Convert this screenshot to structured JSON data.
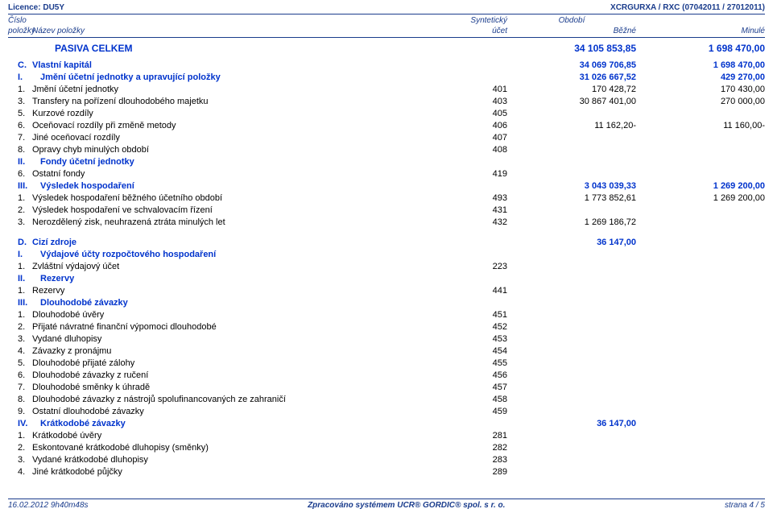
{
  "top": {
    "licence": "Licence: DU5Y",
    "report": "XCRGURXA / RXC (07042011 / 27012011)"
  },
  "head": {
    "cislo": "Číslo",
    "polozky": "položky",
    "nazev": "Název položky",
    "synt": "Syntetický",
    "ucet": "účet",
    "obdobi": "Období",
    "bezne": "Běžné",
    "minule": "Minulé"
  },
  "rows": [
    {
      "style": "blue big",
      "num": "",
      "name": "PASIVA CELKEM",
      "nameIndent": 28,
      "acct": "",
      "cur": "34 105 853,85",
      "prev": "1 698 470,00",
      "gapAfter": 6
    },
    {
      "style": "blue",
      "num": "C.",
      "name": "Vlastní kapitál",
      "acct": "",
      "cur": "34 069 706,85",
      "prev": "1 698 470,00"
    },
    {
      "style": "blue",
      "num": "I.",
      "name": "Jmění účetní jednotky a upravující položky",
      "nameIndent": 10,
      "acct": "",
      "cur": "31 026 667,52",
      "prev": "429 270,00"
    },
    {
      "num": "1.",
      "name": "Jmění účetní jednotky",
      "acct": "401",
      "cur": "170 428,72",
      "prev": "170 430,00"
    },
    {
      "num": "3.",
      "name": "Transfery na pořízení dlouhodobého majetku",
      "acct": "403",
      "cur": "30 867 401,00",
      "prev": "270 000,00"
    },
    {
      "num": "5.",
      "name": "Kurzové rozdíly",
      "acct": "405",
      "cur": "",
      "prev": ""
    },
    {
      "num": "6.",
      "name": "Oceňovací rozdíly při změně metody",
      "acct": "406",
      "cur": "11 162,20-",
      "prev": "11 160,00-"
    },
    {
      "num": "7.",
      "name": "Jiné oceňovací rozdíly",
      "acct": "407",
      "cur": "",
      "prev": ""
    },
    {
      "num": "8.",
      "name": "Opravy chyb minulých období",
      "acct": "408",
      "cur": "",
      "prev": ""
    },
    {
      "style": "blue",
      "num": "II.",
      "name": "Fondy účetní jednotky",
      "nameIndent": 10,
      "acct": "",
      "cur": "",
      "prev": ""
    },
    {
      "num": "6.",
      "name": "Ostatní fondy",
      "acct": "419",
      "cur": "",
      "prev": ""
    },
    {
      "style": "blue",
      "num": "III.",
      "name": "Výsledek hospodaření",
      "nameIndent": 10,
      "acct": "",
      "cur": "3 043 039,33",
      "prev": "1 269 200,00"
    },
    {
      "num": "1.",
      "name": "Výsledek hospodaření běžného účetního období",
      "acct": "493",
      "cur": "1 773 852,61",
      "prev": "1 269 200,00"
    },
    {
      "num": "2.",
      "name": "Výsledek hospodaření ve schvalovacím řízení",
      "acct": "431",
      "cur": "",
      "prev": ""
    },
    {
      "num": "3.",
      "name": "Nerozdělený zisk, neuhrazená ztráta minulých let",
      "acct": "432",
      "cur": "1 269 186,72",
      "prev": "",
      "gapAfter": 10
    },
    {
      "style": "blue",
      "num": "D.",
      "name": "Cizí zdroje",
      "acct": "",
      "cur": "36 147,00",
      "prev": ""
    },
    {
      "style": "blue",
      "num": "I.",
      "name": "Výdajové účty rozpočtového hospodaření",
      "nameIndent": 10,
      "acct": "",
      "cur": "",
      "prev": ""
    },
    {
      "num": "1.",
      "name": "Zvláštní výdajový účet",
      "acct": "223",
      "cur": "",
      "prev": ""
    },
    {
      "style": "blue",
      "num": "II.",
      "name": "Rezervy",
      "nameIndent": 10,
      "acct": "",
      "cur": "",
      "prev": ""
    },
    {
      "num": "1.",
      "name": "Rezervy",
      "acct": "441",
      "cur": "",
      "prev": ""
    },
    {
      "style": "blue",
      "num": "III.",
      "name": "Dlouhodobé závazky",
      "nameIndent": 10,
      "acct": "",
      "cur": "",
      "prev": ""
    },
    {
      "num": "1.",
      "name": "Dlouhodobé úvěry",
      "acct": "451",
      "cur": "",
      "prev": ""
    },
    {
      "num": "2.",
      "name": "Přijaté návratné finanční výpomoci dlouhodobé",
      "acct": "452",
      "cur": "",
      "prev": ""
    },
    {
      "num": "3.",
      "name": "Vydané dluhopisy",
      "acct": "453",
      "cur": "",
      "prev": ""
    },
    {
      "num": "4.",
      "name": "Závazky z pronájmu",
      "acct": "454",
      "cur": "",
      "prev": ""
    },
    {
      "num": "5.",
      "name": "Dlouhodobé přijaté zálohy",
      "acct": "455",
      "cur": "",
      "prev": ""
    },
    {
      "num": "6.",
      "name": "Dlouhodobé závazky z ručení",
      "acct": "456",
      "cur": "",
      "prev": ""
    },
    {
      "num": "7.",
      "name": "Dlouhodobé směnky k úhradě",
      "acct": "457",
      "cur": "",
      "prev": ""
    },
    {
      "num": "8.",
      "name": "Dlouhodobé závazky z nástrojů spolufinancovaných ze zahraničí",
      "acct": "458",
      "cur": "",
      "prev": ""
    },
    {
      "num": "9.",
      "name": "Ostatní dlouhodobé závazky",
      "acct": "459",
      "cur": "",
      "prev": ""
    },
    {
      "style": "blue",
      "num": "IV.",
      "name": "Krátkodobé závazky",
      "nameIndent": 10,
      "acct": "",
      "cur": "36 147,00",
      "prev": ""
    },
    {
      "num": "1.",
      "name": "Krátkodobé úvěry",
      "acct": "281",
      "cur": "",
      "prev": ""
    },
    {
      "num": "2.",
      "name": "Eskontované krátkodobé dluhopisy (směnky)",
      "acct": "282",
      "cur": "",
      "prev": ""
    },
    {
      "num": "3.",
      "name": "Vydané krátkodobé dluhopisy",
      "acct": "283",
      "cur": "",
      "prev": ""
    },
    {
      "num": "4.",
      "name": "Jiné krátkodobé půjčky",
      "acct": "289",
      "cur": "",
      "prev": ""
    }
  ],
  "footer": {
    "ts": "16.02.2012 9h40m48s",
    "mid": "Zpracováno systémem UCR® GORDIC® spol. s r. o.",
    "page": "strana 4 / 5"
  }
}
